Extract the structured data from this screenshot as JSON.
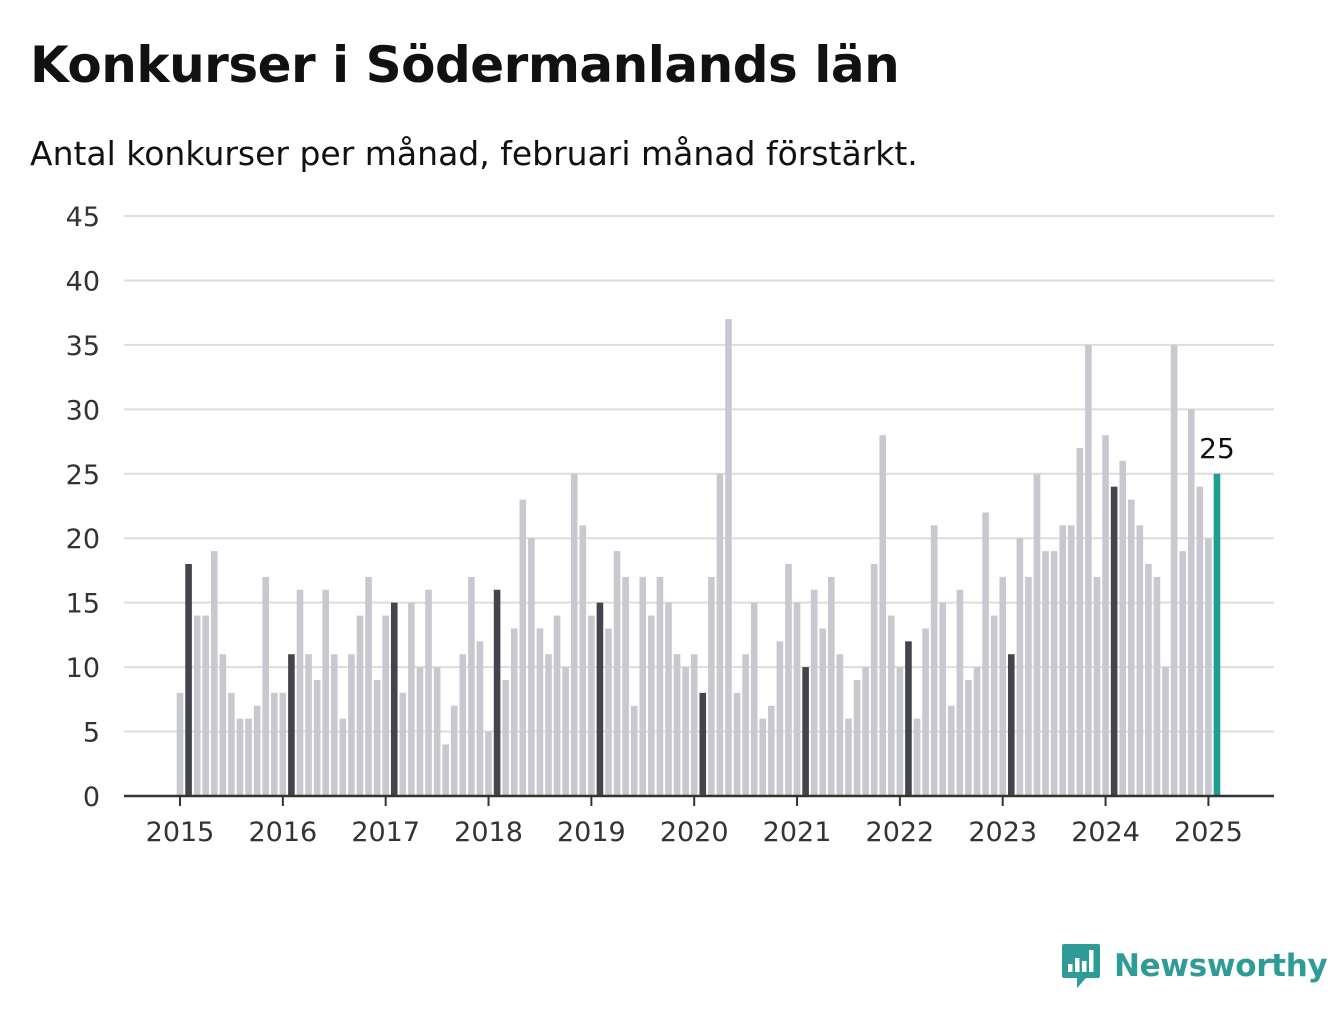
{
  "title": "Konkurser i Södermanlands län",
  "subtitle": "Antal konkurser per månad, februari månad förstärkt.",
  "brand": {
    "name": "Newsworthy",
    "color": "#2f9b97",
    "icon": "newsworthy-chart-bubble-icon"
  },
  "colors": {
    "bar": "#c8c8d0",
    "highlight": "#44444e",
    "current": "#1e9e90",
    "grid": "#dddddd",
    "axis": "#333333"
  },
  "chart_data": {
    "type": "bar",
    "title": "Konkurser i Södermanlands län",
    "subtitle": "Antal konkurser per månad, februari månad förstärkt.",
    "xlabel": "",
    "ylabel": "",
    "ylim": [
      0,
      45
    ],
    "yticks": [
      0,
      5,
      10,
      15,
      20,
      25,
      30,
      35,
      40,
      45
    ],
    "year_labels": [
      "2015",
      "2016",
      "2017",
      "2018",
      "2019",
      "2020",
      "2021",
      "2022",
      "2023",
      "2024",
      "2025"
    ],
    "start": "2015-01",
    "grid": true,
    "highlight_month": "February",
    "last_value_label": "25",
    "series": [
      {
        "values": [
          8,
          18,
          14,
          14,
          19,
          11,
          8,
          6,
          6,
          7,
          17,
          8,
          8,
          11,
          16,
          11,
          9,
          16,
          11,
          6,
          11,
          14,
          17,
          9,
          14,
          15,
          8,
          15,
          10,
          16,
          10,
          4,
          7,
          11,
          17,
          12,
          5,
          16,
          9,
          13,
          23,
          20,
          13,
          11,
          14,
          10,
          25,
          21,
          14,
          15,
          13,
          19,
          17,
          7,
          17,
          14,
          17,
          15,
          11,
          10,
          11,
          8,
          17,
          25,
          37,
          8,
          11,
          15,
          6,
          7,
          12,
          18,
          15,
          10,
          16,
          13,
          17,
          11,
          6,
          9,
          10,
          18,
          28,
          14,
          10,
          12,
          6,
          13,
          21,
          15,
          7,
          16,
          9,
          10,
          22,
          14,
          17,
          11,
          20,
          17,
          25,
          19,
          19,
          21,
          21,
          27,
          35,
          17,
          28,
          24,
          26,
          23,
          21,
          18,
          17,
          10,
          35,
          19,
          30,
          24,
          20,
          25
        ]
      }
    ]
  }
}
